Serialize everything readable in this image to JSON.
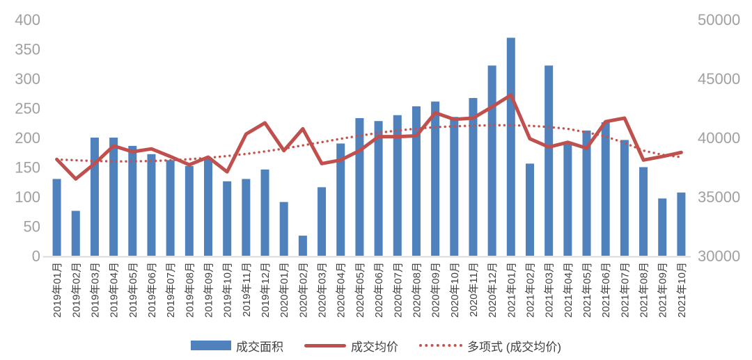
{
  "chart_data": {
    "type": "combo",
    "title": "",
    "categories": [
      "2019年01月",
      "2019年02月",
      "2019年03月",
      "2019年04月",
      "2019年05月",
      "2019年06月",
      "2019年07月",
      "2019年08月",
      "2019年09月",
      "2019年10月",
      "2019年11月",
      "2019年12月",
      "2020年01月",
      "2020年02月",
      "2020年03月",
      "2020年04月",
      "2020年05月",
      "2020年06月",
      "2020年07月",
      "2020年08月",
      "2020年09月",
      "2020年10月",
      "2020年11月",
      "2020年12月",
      "2021年01月",
      "2021年02月",
      "2021年03月",
      "2021年04月",
      "2021年05月",
      "2021年06月",
      "2021年07月",
      "2021年08月",
      "2021年09月",
      "2021年10月"
    ],
    "series": [
      {
        "name": "成交面积",
        "type": "bar",
        "axis": "left",
        "color": "#4f81bd",
        "values": [
          130,
          76,
          200,
          200,
          186,
          172,
          162,
          152,
          166,
          126,
          130,
          146,
          91,
          34,
          116,
          190,
          233,
          228,
          238,
          253,
          261,
          235,
          267,
          322,
          369,
          156,
          322,
          190,
          212,
          226,
          196,
          150,
          97,
          107
        ]
      },
      {
        "name": "成交均价",
        "type": "line",
        "axis": "right",
        "color": "#c0504d",
        "values": [
          38160,
          36500,
          37800,
          39300,
          38800,
          39050,
          38400,
          37700,
          38350,
          37100,
          40300,
          41250,
          38900,
          40750,
          37800,
          38100,
          38900,
          40080,
          40080,
          40150,
          42100,
          41550,
          41650,
          42600,
          43600,
          39900,
          39200,
          39600,
          39100,
          41350,
          41650,
          38100,
          38400,
          38750
        ]
      },
      {
        "name": "多项式 (成交均价)",
        "type": "dotted-line",
        "axis": "right",
        "color": "#c4534e",
        "values": [
          38150,
          38080,
          38020,
          37990,
          37990,
          38020,
          38080,
          38170,
          38290,
          38440,
          38620,
          38830,
          39070,
          39340,
          39620,
          39900,
          40160,
          40400,
          40600,
          40760,
          40880,
          40960,
          41010,
          41040,
          41050,
          41000,
          40900,
          40740,
          40450,
          40100,
          39550,
          38900,
          38550,
          38350
        ]
      }
    ],
    "left_axis": {
      "min": 0,
      "max": 400,
      "step": 50,
      "ticks": [
        "0",
        "50",
        "100",
        "150",
        "200",
        "250",
        "300",
        "350",
        "400"
      ]
    },
    "right_axis": {
      "min": 30000,
      "max": 50000,
      "step": 5000,
      "ticks": [
        "30000",
        "35000",
        "40000",
        "45000",
        "50000"
      ]
    },
    "grid": false,
    "legend_position": "bottom",
    "colors": {
      "axis_text": "#a0a0a0",
      "category_text": "#3f3f3f",
      "legend_text": "#3f3f3f",
      "baseline": "#d9d9d9",
      "background": "#ffffff"
    }
  }
}
